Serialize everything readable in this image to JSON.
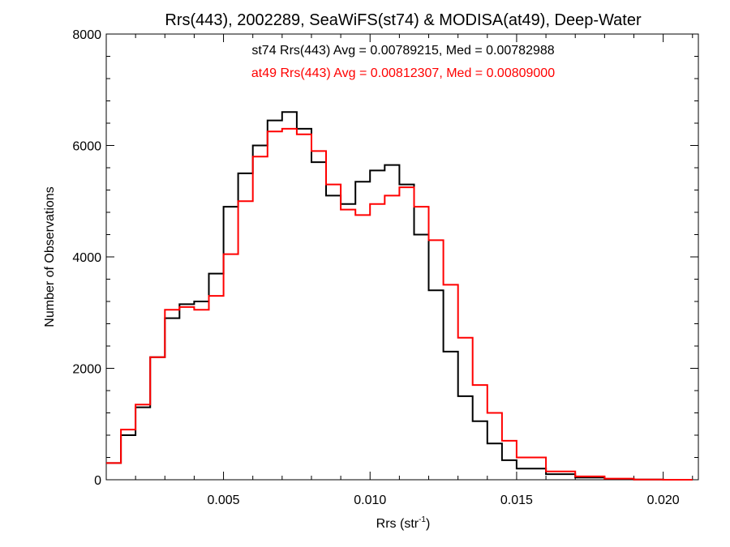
{
  "chart_data": {
    "type": "line",
    "title": "Rrs(443), 2002289, SeaWiFS(st74) & MODISA(at49), Deep-Water",
    "xlabel_main": "Rrs (str",
    "xlabel_sup": "-1",
    "xlabel_close": ")",
    "ylabel": "Number of Observations",
    "xlim": [
      0.001,
      0.0212
    ],
    "ylim": [
      0,
      8000
    ],
    "xticks": [
      0.005,
      0.01,
      0.015,
      0.02
    ],
    "xtick_labels": [
      "0.005",
      "0.010",
      "0.015",
      "0.020"
    ],
    "yticks": [
      0,
      2000,
      4000,
      6000,
      8000
    ],
    "ytick_labels": [
      "0",
      "2000",
      "4000",
      "6000",
      "8000"
    ],
    "grid": false,
    "annotations": [
      "st74 Rrs(443) Avg = 0.00789215, Med = 0.00782988",
      "at49 Rrs(443) Avg = 0.00812307, Med = 0.00809000"
    ],
    "series": [
      {
        "key": "st74",
        "color": "#000000",
        "style": "step",
        "x": [
          0.001,
          0.0015,
          0.002,
          0.0025,
          0.003,
          0.0035,
          0.004,
          0.0045,
          0.005,
          0.0055,
          0.006,
          0.0065,
          0.007,
          0.0075,
          0.008,
          0.0085,
          0.009,
          0.0095,
          0.01,
          0.0105,
          0.011,
          0.0115,
          0.012,
          0.0125,
          0.013,
          0.0135,
          0.014,
          0.0145,
          0.015,
          0.016,
          0.017,
          0.018,
          0.019,
          0.02,
          0.021
        ],
        "y": [
          300,
          800,
          1300,
          2200,
          2900,
          3150,
          3200,
          3700,
          4900,
          5500,
          6000,
          6450,
          6600,
          6300,
          5700,
          5100,
          4950,
          5350,
          5550,
          5650,
          5300,
          4400,
          3400,
          2300,
          1500,
          1050,
          650,
          350,
          200,
          100,
          40,
          15,
          5,
          0,
          0
        ]
      },
      {
        "key": "at49",
        "color": "#ff0000",
        "style": "step",
        "x": [
          0.001,
          0.0015,
          0.002,
          0.0025,
          0.003,
          0.0035,
          0.004,
          0.0045,
          0.005,
          0.0055,
          0.006,
          0.0065,
          0.007,
          0.0075,
          0.008,
          0.0085,
          0.009,
          0.0095,
          0.01,
          0.0105,
          0.011,
          0.0115,
          0.012,
          0.0125,
          0.013,
          0.0135,
          0.014,
          0.0145,
          0.015,
          0.016,
          0.017,
          0.018,
          0.019,
          0.02,
          0.021
        ],
        "y": [
          300,
          900,
          1350,
          2200,
          3050,
          3100,
          3050,
          3300,
          4050,
          5000,
          5800,
          6250,
          6300,
          6200,
          5900,
          5300,
          4850,
          4750,
          4950,
          5100,
          5250,
          4900,
          4300,
          3500,
          2550,
          1700,
          1200,
          700,
          400,
          150,
          60,
          20,
          5,
          0,
          0
        ]
      }
    ]
  }
}
